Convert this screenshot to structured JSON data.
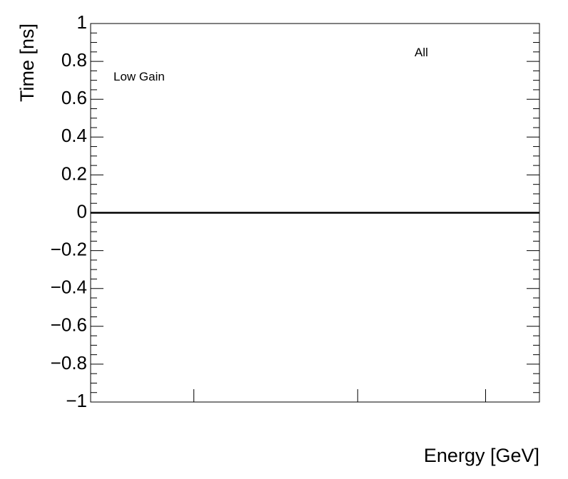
{
  "chart_data": {
    "type": "line",
    "x_label": "Energy [GeV]",
    "y_label": "Time [ns]",
    "annotations": [
      "Low Gain",
      "All"
    ],
    "xlim": [
      0,
      100
    ],
    "xticks": [
      23,
      59.5,
      88
    ],
    "ylim": [
      -1,
      1
    ],
    "yticks": [
      {
        "value": -1,
        "label": "−1"
      },
      {
        "value": -0.8,
        "label": "−0.8"
      },
      {
        "value": -0.6,
        "label": "−0.6"
      },
      {
        "value": -0.4,
        "label": "−0.4"
      },
      {
        "value": -0.2,
        "label": "−0.2"
      },
      0,
      0.2,
      0.4,
      0.6,
      0.8,
      1
    ],
    "series": [
      {
        "color": "#000000",
        "x": [
          0,
          100
        ],
        "values": [
          0,
          0
        ]
      }
    ]
  }
}
